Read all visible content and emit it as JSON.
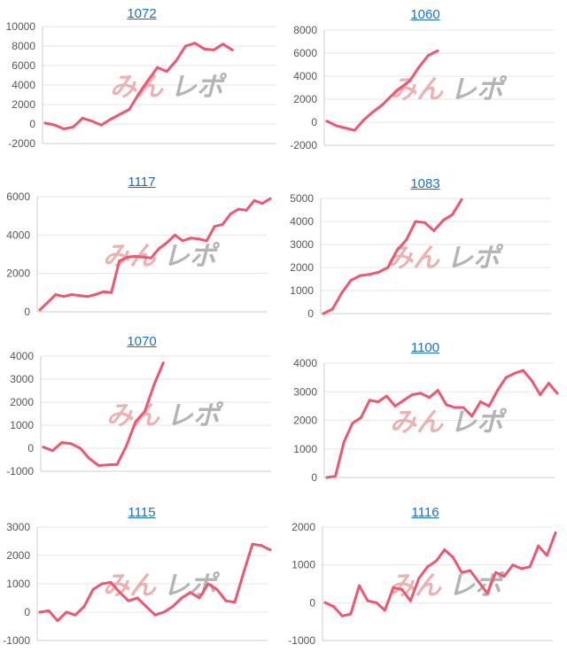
{
  "colors": {
    "line": "#f0566f",
    "grid": "#e6e6e6",
    "axis": "#cccccc",
    "link": "#1a6fd1",
    "wm_a": "#e9a5a5",
    "wm_b": "#a7a7a7"
  },
  "watermark": {
    "part1": "みん",
    "part2": "レポ"
  },
  "chart_data": [
    {
      "type": "line",
      "title": "1072",
      "yticks": [
        -2000,
        0,
        2000,
        4000,
        6000,
        8000,
        10000
      ],
      "ylim": [
        -2000,
        10000
      ],
      "values": [
        100,
        -100,
        -500,
        -300,
        600,
        300,
        -100,
        500,
        1000,
        1500,
        3100,
        4500,
        5800,
        5400,
        6500,
        8000,
        8300,
        7700,
        7600,
        8200,
        7600
      ]
    },
    {
      "type": "line",
      "title": "1060",
      "yticks": [
        -2000,
        0,
        2000,
        4000,
        6000,
        8000
      ],
      "ylim": [
        -2000,
        8000
      ],
      "values": [
        100,
        -300,
        -500,
        -700,
        200,
        900,
        1500,
        2300,
        3000,
        3600,
        4800,
        5800,
        6200
      ]
    },
    {
      "type": "line",
      "title": "1117",
      "yticks": [
        0,
        2000,
        4000,
        6000
      ],
      "ylim": [
        0,
        6000
      ],
      "values": [
        100,
        500,
        900,
        800,
        900,
        850,
        800,
        900,
        1050,
        1000,
        2650,
        2850,
        2900,
        2850,
        2800,
        3300,
        3600,
        4000,
        3700,
        3850,
        3800,
        3700,
        4450,
        4550,
        5100,
        5350,
        5300,
        5800,
        5650,
        5900
      ]
    },
    {
      "type": "line",
      "title": "1083",
      "yticks": [
        0,
        1000,
        2000,
        3000,
        4000,
        5000
      ],
      "ylim": [
        0,
        5000
      ],
      "values": [
        0,
        200,
        900,
        1450,
        1650,
        1700,
        1800,
        2000,
        2750,
        3200,
        4000,
        3950,
        3600,
        4050,
        4300,
        4950
      ]
    },
    {
      "type": "line",
      "title": "1070",
      "yticks": [
        -1000,
        0,
        1000,
        2000,
        3000,
        4000
      ],
      "ylim": [
        -1000,
        4000
      ],
      "values": [
        50,
        -100,
        250,
        200,
        0,
        -450,
        -750,
        -720,
        -700,
        100,
        1150,
        1600,
        2750,
        3700
      ]
    },
    {
      "type": "line",
      "title": "1100",
      "yticks": [
        0,
        1000,
        2000,
        3000,
        4000
      ],
      "ylim": [
        0,
        4000
      ],
      "values": [
        0,
        50,
        1250,
        1900,
        2100,
        2700,
        2650,
        2850,
        2500,
        2700,
        2900,
        2950,
        2800,
        3050,
        2550,
        2450,
        2450,
        2150,
        2650,
        2500,
        3050,
        3500,
        3650,
        3750,
        3400,
        2900,
        3300,
        2950
      ]
    },
    {
      "type": "line",
      "title": "1115",
      "yticks": [
        -1000,
        0,
        1000,
        2000,
        3000
      ],
      "ylim": [
        -1000,
        3000
      ],
      "values": [
        0,
        50,
        -300,
        0,
        -100,
        200,
        800,
        1000,
        1050,
        700,
        400,
        500,
        200,
        -100,
        0,
        200,
        500,
        700,
        500,
        1000,
        800,
        400,
        350,
        1400,
        2400,
        2350,
        2200
      ]
    },
    {
      "type": "line",
      "title": "1116",
      "yticks": [
        -1000,
        0,
        1000,
        2000
      ],
      "ylim": [
        -1000,
        2000
      ],
      "values": [
        0,
        -100,
        -350,
        -300,
        450,
        50,
        0,
        -200,
        400,
        350,
        50,
        650,
        950,
        1100,
        1400,
        1200,
        800,
        850,
        550,
        250,
        800,
        700,
        1000,
        900,
        950,
        1500,
        1250,
        1850
      ]
    }
  ]
}
